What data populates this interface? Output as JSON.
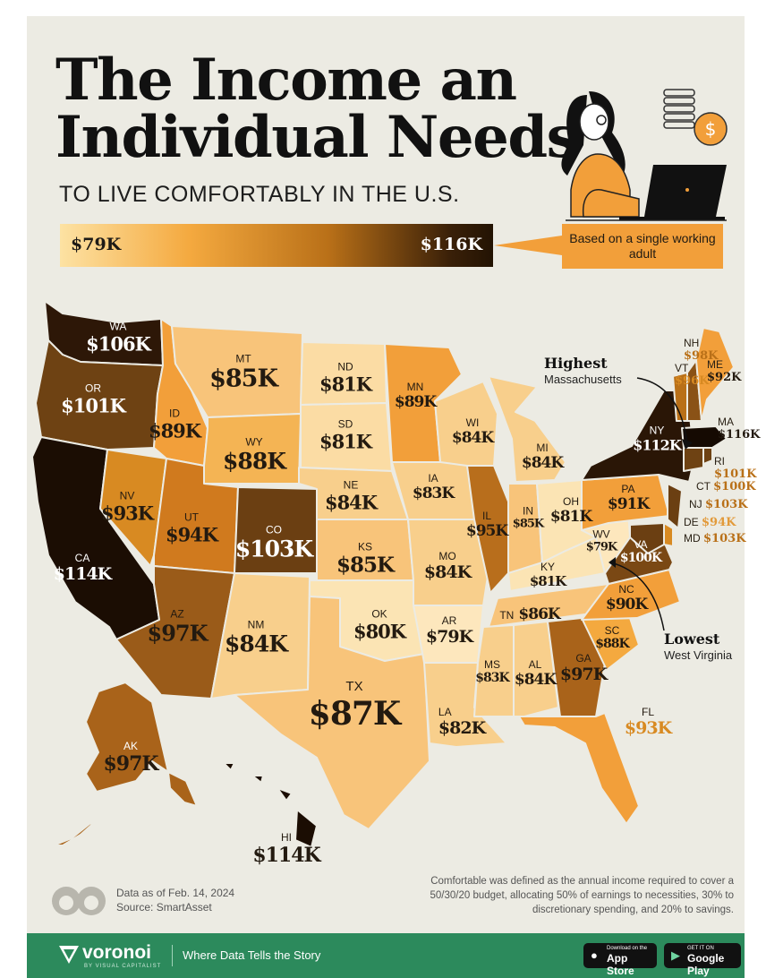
{
  "title_line1": "The Income an",
  "title_line2": "Individual Needs",
  "subtitle": "TO LIVE COMFORTABLY IN THE U.S.",
  "legend": {
    "min_label": "$79K",
    "max_label": "$116K"
  },
  "note": "Based on a single working adult",
  "colors": {
    "lightest": "#fde2a3",
    "light": "#f8c47a",
    "mid": "#f29f3a",
    "dark": "#b97018",
    "darker": "#6e4213",
    "darkest": "#2a1606",
    "footer": "#2c8a5c"
  },
  "states": {
    "WA": {
      "abbr": "WA",
      "value": "$106K"
    },
    "OR": {
      "abbr": "OR",
      "value": "$101K"
    },
    "CA": {
      "abbr": "CA",
      "value": "$114K"
    },
    "NV": {
      "abbr": "NV",
      "value": "$93K"
    },
    "ID": {
      "abbr": "ID",
      "value": "$89K"
    },
    "MT": {
      "abbr": "MT",
      "value": "$85K"
    },
    "WY": {
      "abbr": "WY",
      "value": "$88K"
    },
    "UT": {
      "abbr": "UT",
      "value": "$94K"
    },
    "AZ": {
      "abbr": "AZ",
      "value": "$97K"
    },
    "CO": {
      "abbr": "CO",
      "value": "$103K"
    },
    "NM": {
      "abbr": "NM",
      "value": "$84K"
    },
    "ND": {
      "abbr": "ND",
      "value": "$81K"
    },
    "SD": {
      "abbr": "SD",
      "value": "$81K"
    },
    "NE": {
      "abbr": "NE",
      "value": "$84K"
    },
    "KS": {
      "abbr": "KS",
      "value": "$85K"
    },
    "OK": {
      "abbr": "OK",
      "value": "$80K"
    },
    "TX": {
      "abbr": "TX",
      "value": "$87K"
    },
    "MN": {
      "abbr": "MN",
      "value": "$89K"
    },
    "IA": {
      "abbr": "IA",
      "value": "$83K"
    },
    "MO": {
      "abbr": "MO",
      "value": "$84K"
    },
    "AR": {
      "abbr": "AR",
      "value": "$79K"
    },
    "LA": {
      "abbr": "LA",
      "value": "$82K"
    },
    "WI": {
      "abbr": "WI",
      "value": "$84K"
    },
    "IL": {
      "abbr": "IL",
      "value": "$95K"
    },
    "MI": {
      "abbr": "MI",
      "value": "$84K"
    },
    "IN": {
      "abbr": "IN",
      "value": "$85K"
    },
    "OH": {
      "abbr": "OH",
      "value": "$81K"
    },
    "KY": {
      "abbr": "KY",
      "value": "$81K"
    },
    "TN": {
      "abbr": "TN",
      "value": "$86K"
    },
    "MS": {
      "abbr": "MS",
      "value": "$83K"
    },
    "AL": {
      "abbr": "AL",
      "value": "$84K"
    },
    "GA": {
      "abbr": "GA",
      "value": "$97K"
    },
    "FL": {
      "abbr": "FL",
      "value": "$93K"
    },
    "SC": {
      "abbr": "SC",
      "value": "$88K"
    },
    "NC": {
      "abbr": "NC",
      "value": "$90K"
    },
    "VA": {
      "abbr": "VA",
      "value": "$100K"
    },
    "WV": {
      "abbr": "WV",
      "value": "$79K"
    },
    "PA": {
      "abbr": "PA",
      "value": "$91K"
    },
    "NY": {
      "abbr": "NY",
      "value": "$112K"
    },
    "AK": {
      "abbr": "AK",
      "value": "$97K"
    },
    "HI": {
      "abbr": "HI",
      "value": "$114K"
    },
    "NH": {
      "abbr": "NH",
      "value": "$98K"
    },
    "VT": {
      "abbr": "VT",
      "value": "$96K"
    },
    "ME": {
      "abbr": "ME",
      "value": "$92K"
    },
    "MA": {
      "abbr": "MA",
      "value": "$116K"
    },
    "RI": {
      "abbr": "RI",
      "value": "$101K"
    },
    "CT": {
      "abbr": "CT",
      "value": "$100K"
    },
    "NJ": {
      "abbr": "NJ",
      "value": "$103K"
    },
    "DE": {
      "abbr": "DE",
      "value": "$94K"
    },
    "MD": {
      "abbr": "MD",
      "value": "$103K"
    }
  },
  "callouts": {
    "highest_title": "Highest",
    "highest_state": "Massachusetts",
    "lowest_title": "Lowest",
    "lowest_state": "West Virginia"
  },
  "footnote": "Comfortable was defined as the annual income required to cover a 50/30/20 budget, allocating 50% of earnings to necessities, 30% to discretionary spending, and 20% to savings.",
  "data_as_of": "Data as of Feb. 14, 2024",
  "source": "Source: SmartAsset",
  "footer": {
    "brand": "voronoi",
    "brand_sub": "BY VISUAL CAPITALIST",
    "tagline": "Where Data Tells the Story",
    "appstore_small": "Download on the",
    "appstore_big": "App Store",
    "googleplay_small": "GET IT ON",
    "googleplay_big": "Google Play"
  }
}
